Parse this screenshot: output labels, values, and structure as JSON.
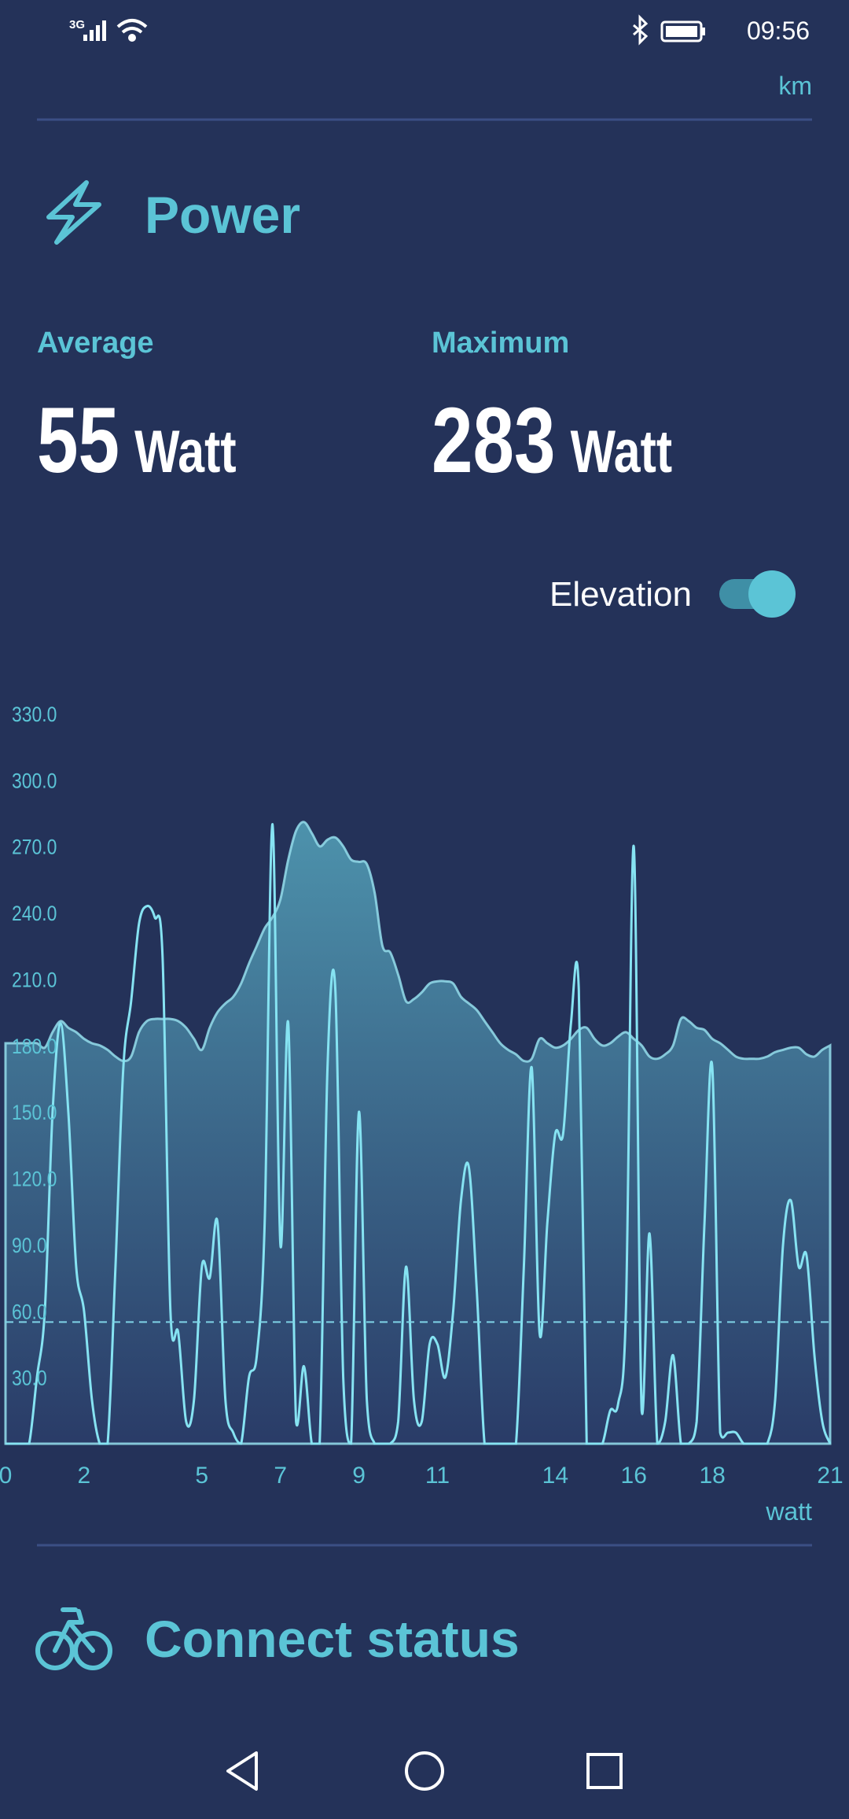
{
  "status": {
    "network": "3G",
    "time": "09:56"
  },
  "header": {
    "unit": "km"
  },
  "power": {
    "title": "Power"
  },
  "stats": [
    {
      "label": "Average",
      "value": 55,
      "unit": "Watt"
    },
    {
      "label": "Maximum",
      "value": 283,
      "unit": "Watt"
    }
  ],
  "toggle": {
    "label": "Elevation",
    "on": true
  },
  "chart_data": {
    "type": "line",
    "x_label": "watt",
    "x": [
      0,
      0.2,
      0.4,
      0.6,
      0.8,
      1.0,
      1.2,
      1.4,
      1.6,
      1.8,
      2.0,
      2.2,
      2.4,
      2.6,
      2.8,
      3.0,
      3.2,
      3.4,
      3.6,
      3.8,
      4.0,
      4.2,
      4.4,
      4.6,
      4.8,
      5.0,
      5.2,
      5.4,
      5.6,
      5.8,
      6.0,
      6.2,
      6.4,
      6.6,
      6.8,
      7.0,
      7.2,
      7.4,
      7.6,
      7.8,
      8.0,
      8.2,
      8.4,
      8.6,
      8.8,
      9.0,
      9.2,
      9.4,
      9.6,
      9.8,
      10.0,
      10.2,
      10.4,
      10.6,
      10.8,
      11.0,
      11.2,
      11.4,
      11.6,
      11.8,
      12.0,
      12.2,
      12.4,
      12.6,
      12.8,
      13.0,
      13.2,
      13.4,
      13.6,
      13.8,
      14.0,
      14.2,
      14.4,
      14.6,
      14.8,
      15.0,
      15.2,
      15.4,
      15.6,
      15.8,
      16.0,
      16.2,
      16.4,
      16.6,
      16.8,
      17.0,
      17.2,
      17.4,
      17.6,
      17.8,
      18.0,
      18.2,
      18.4,
      18.6,
      18.8,
      19.0,
      19.2,
      19.4,
      19.6,
      19.8,
      20.0,
      20.2,
      20.4,
      20.6,
      20.8,
      21.0
    ],
    "series": [
      {
        "style": "area",
        "color": "#8fd6e6",
        "values": [
          181,
          181,
          181,
          181,
          181,
          179,
          186,
          191,
          188,
          186,
          183,
          181,
          180,
          178,
          175,
          173,
          175,
          186,
          191,
          192,
          192,
          192,
          191,
          188,
          183,
          178,
          188,
          195,
          199,
          202,
          208,
          217,
          225,
          233,
          238,
          246,
          264,
          277,
          281,
          276,
          270,
          273,
          274,
          270,
          264,
          263,
          262,
          249,
          225,
          222,
          212,
          200,
          201,
          204,
          208,
          209,
          209,
          208,
          202,
          199,
          196,
          191,
          186,
          181,
          178,
          176,
          173,
          174,
          183,
          181,
          179,
          180,
          183,
          187,
          188,
          183,
          180,
          181,
          184,
          186,
          183,
          180,
          175,
          174,
          176,
          180,
          192,
          191,
          188,
          187,
          183,
          181,
          178,
          175,
          174,
          174,
          174,
          175,
          177,
          178,
          179,
          179,
          176,
          175,
          178,
          180
        ]
      },
      {
        "style": "line",
        "color": "#86e3f2",
        "values": [
          0,
          0,
          0,
          0,
          30,
          60,
          150,
          190,
          150,
          80,
          60,
          20,
          0,
          0,
          80,
          170,
          200,
          235,
          243,
          238,
          220,
          60,
          50,
          10,
          20,
          80,
          75,
          100,
          20,
          5,
          0,
          30,
          40,
          100,
          280,
          90,
          190,
          10,
          35,
          0,
          0,
          170,
          205,
          30,
          0,
          150,
          20,
          0,
          0,
          0,
          10,
          80,
          20,
          10,
          45,
          45,
          30,
          60,
          110,
          125,
          70,
          0,
          0,
          0,
          0,
          0,
          80,
          170,
          50,
          100,
          140,
          140,
          190,
          205,
          0,
          0,
          0,
          15,
          18,
          60,
          270,
          15,
          95,
          0,
          10,
          40,
          0,
          0,
          10,
          100,
          170,
          5,
          5,
          5,
          0,
          0,
          0,
          0,
          20,
          90,
          110,
          80,
          85,
          40,
          10,
          0
        ]
      }
    ],
    "xlim": [
      0,
      21
    ],
    "xticks": [
      0,
      2,
      5,
      7,
      9,
      11,
      14,
      16,
      18,
      21
    ],
    "ylim": [
      0,
      330
    ],
    "yticks": [
      {
        "value": 30,
        "label": "30.0"
      },
      {
        "value": 60,
        "label": "60.0"
      },
      {
        "value": 90,
        "label": "90.0"
      },
      {
        "value": 120,
        "label": "120.0"
      },
      {
        "value": 150,
        "label": "150.0"
      },
      {
        "value": 180,
        "label": "180.0"
      },
      {
        "value": 210,
        "label": "210.0"
      },
      {
        "value": 240,
        "label": "240.0"
      },
      {
        "value": 270,
        "label": "270.0"
      },
      {
        "value": 300,
        "label": "300.0"
      },
      {
        "value": 330,
        "label": "330.0"
      }
    ]
  },
  "connect": {
    "title": "Connect status"
  }
}
